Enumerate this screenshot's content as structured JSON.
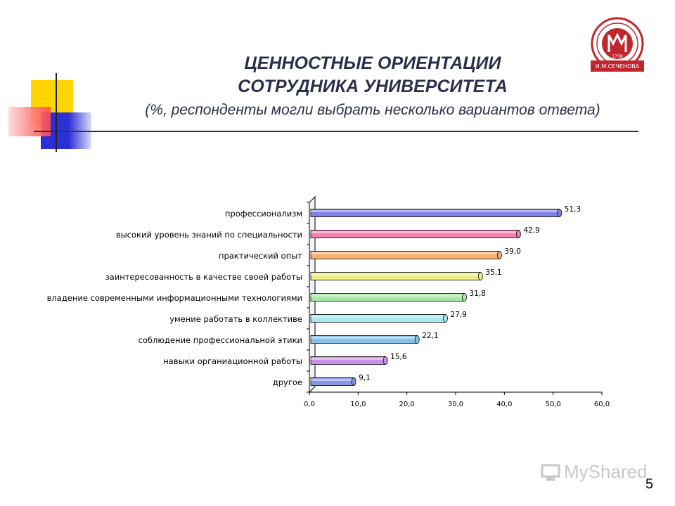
{
  "slide": {
    "title_line1": "ЦЕННОСТНЫЕ ОРИЕНТАЦИИ",
    "title_line2": "СОТРУДНИКА УНИВЕРСИТЕТА",
    "subtitle": "(%, респонденты могли выбрать несколько вариантов ответа)",
    "page_number": "5",
    "logo_text": "И.М.СЕЧЕНОВА",
    "logo_year": "1758",
    "watermark_text": "MyShared"
  },
  "colors": {
    "title": "#2b2f4a",
    "deco_yellow": "#ffd400",
    "deco_blue": "#2b2fd6",
    "deco_red": "#ff5a5a",
    "logo_red": "#c0272d"
  },
  "chart_data": {
    "type": "bar",
    "orientation": "horizontal",
    "categories": [
      "профессионализм",
      "высокий уровень знаний по специальности",
      "практический опыт",
      "заинтересованность в качестве своей работы",
      "владение современными информационными технологиями",
      "умение работать в коллективе",
      "соблюдение профессиональной этики",
      "навыки органиационной работы",
      "другое"
    ],
    "values": [
      51.3,
      42.9,
      39.0,
      35.1,
      31.8,
      27.9,
      22.1,
      15.6,
      9.1
    ],
    "value_labels": [
      "51,3",
      "42,9",
      "39,0",
      "35,1",
      "31,8",
      "27,9",
      "22,1",
      "15,6",
      "9,1"
    ],
    "bar_colors": [
      "#8080e8",
      "#f080b0",
      "#f8b070",
      "#f0f080",
      "#a8e8a8",
      "#a8e8f0",
      "#88c0e8",
      "#c890e8",
      "#8898e0"
    ],
    "xlim": [
      0,
      60
    ],
    "xticks": [
      0,
      10,
      20,
      30,
      40,
      50,
      60
    ],
    "xtick_labels": [
      "0,0",
      "10,0",
      "20,0",
      "30,0",
      "40,0",
      "50,0",
      "60,0"
    ],
    "grid": false,
    "legend": "none",
    "title": "",
    "xlabel": "",
    "ylabel": ""
  }
}
